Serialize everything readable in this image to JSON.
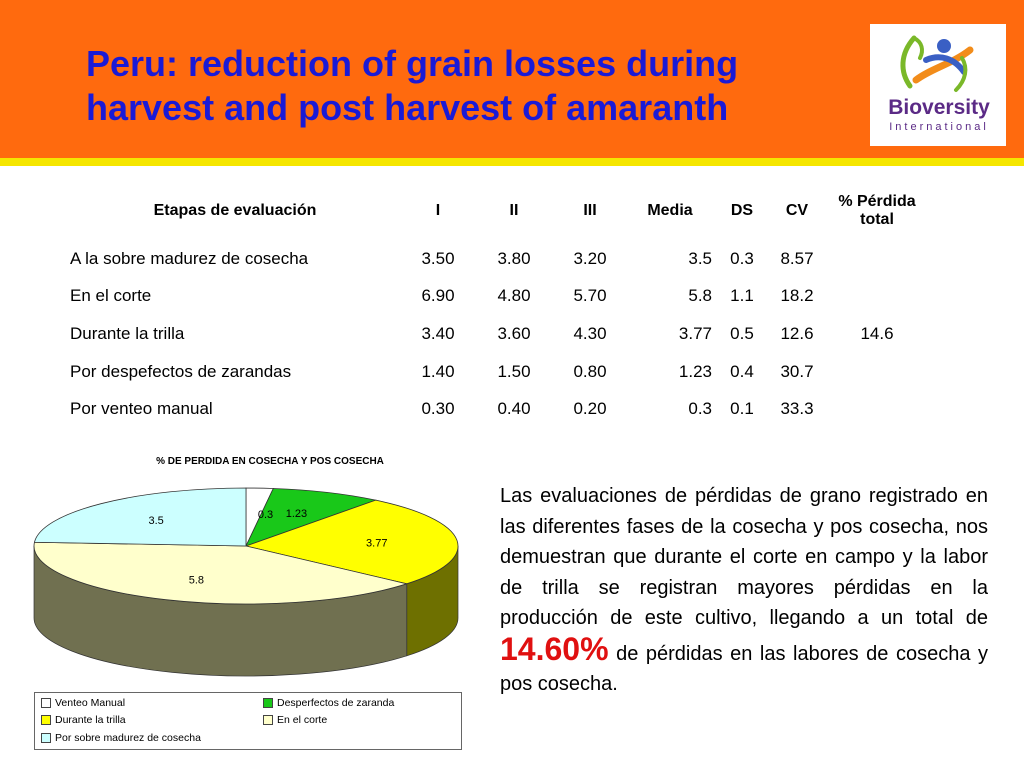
{
  "slide": {
    "title": "Peru: reduction of grain losses during harvest and post harvest of amaranth",
    "logo": {
      "name": "Bioversity",
      "sub": "International"
    },
    "colors": {
      "header": "#ff6a0e",
      "stripe": "#f5e600",
      "title": "#1a1ad6",
      "highlight": "#e01010"
    }
  },
  "table": {
    "headers": [
      "Etapas de evaluación",
      "I",
      "II",
      "III",
      "Media",
      "DS",
      "CV",
      "% Pérdida total"
    ],
    "rows": [
      [
        "A la sobre madurez de cosecha",
        "3.50",
        "3.80",
        "3.20",
        "3.5",
        "0.3",
        "8.57"
      ],
      [
        "En  el corte",
        "6.90",
        "4.80",
        "5.70",
        "5.8",
        "1.1",
        "18.2"
      ],
      [
        "Durante la trilla",
        "3.40",
        "3.60",
        "4.30",
        "3.77",
        "0.5",
        "12.6"
      ],
      [
        "Por despefectos de zarandas",
        "1.40",
        "1.50",
        "0.80",
        "1.23",
        "0.4",
        "30.7"
      ],
      [
        "Por venteo manual",
        "0.30",
        "0.40",
        "0.20",
        "0.3",
        "0.1",
        "33.3"
      ]
    ],
    "total": "14.6"
  },
  "chart_data": {
    "type": "pie",
    "title": "% DE PERDIDA EN COSECHA Y POS COSECHA",
    "slices": [
      {
        "label": "Venteo Manual",
        "value": 0.3,
        "color": "#ffffff",
        "dark": "#9a9a9a"
      },
      {
        "label": "Desperfectos de zaranda",
        "value": 1.23,
        "color": "#19c819",
        "dark": "#0d700d"
      },
      {
        "label": "Durante la trilla",
        "value": 3.77,
        "color": "#ffff00",
        "dark": "#6e7000"
      },
      {
        "label": "En el corte",
        "value": 5.8,
        "color": "#ffffcc",
        "dark": "#707050"
      },
      {
        "label": "Por sobre madurez de cosecha",
        "value": 3.5,
        "color": "#ccffff",
        "dark": "#5c7878"
      }
    ],
    "legend": [
      "Venteo Manual",
      "Desperfectos de zaranda",
      "Durante la trilla",
      "En el corte",
      "Por sobre madurez de cosecha"
    ]
  },
  "paragraph": {
    "before": "Las evaluaciones de pérdidas de grano registrado en las diferentes fases de la cosecha y pos cosecha, nos demuestran que durante el corte en campo y la labor de trilla se registran mayores pérdidas en la producción de este cultivo, llegando a un total de ",
    "highlight": "14.60%",
    "after": " de pérdidas en las labores de cosecha y pos cosecha."
  }
}
